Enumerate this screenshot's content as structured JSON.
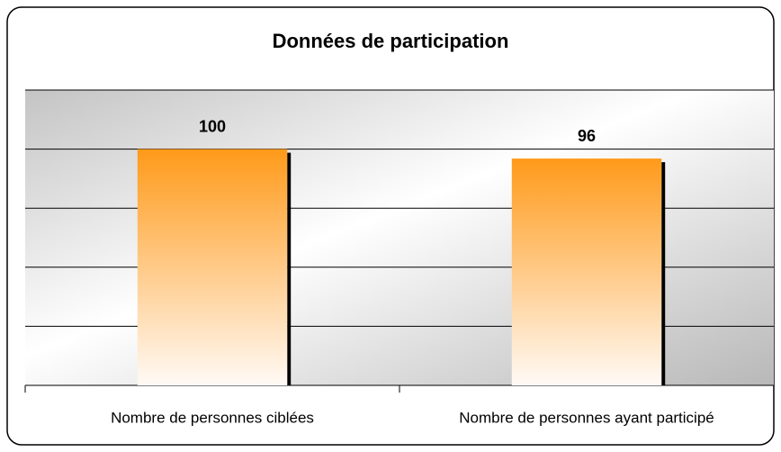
{
  "chart_data": {
    "type": "bar",
    "title": "Données de participation",
    "categories": [
      "Nombre de personnes ciblées",
      "Nombre de personnes ayant participé"
    ],
    "values": [
      100,
      96
    ],
    "color": "#ff9a1a",
    "ylim": [
      0,
      125
    ],
    "yticks": [
      0,
      25,
      50,
      75,
      100,
      125
    ],
    "grid": true
  }
}
